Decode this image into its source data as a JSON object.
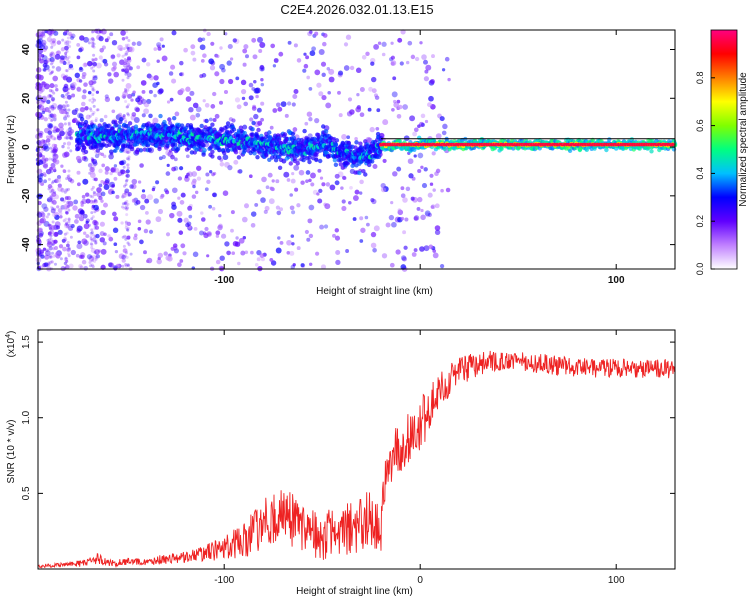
{
  "figure_title": "C2E4.2026.032.01.13.E15",
  "chart_data": [
    {
      "type": "heatmap",
      "name": "spectrogram",
      "xlabel": "Height of straight line (km)",
      "ylabel": "Frequency (Hz)",
      "xlim": [
        -195,
        130
      ],
      "ylim": [
        -50,
        48
      ],
      "xticks": [
        -100,
        0,
        100
      ],
      "xtick_labels": [
        "-100",
        "",
        "100"
      ],
      "yticks": [
        -40,
        -20,
        0,
        20,
        40
      ],
      "ytick_labels": [
        "-40",
        "-20",
        "0",
        "20",
        "40"
      ],
      "trend_x": [
        -175,
        -160,
        -140,
        -120,
        -100,
        -90,
        -80,
        -70,
        -60,
        -55,
        -50,
        -45,
        -40,
        -35,
        -30,
        -25,
        -20,
        -15,
        -10,
        -5,
        0,
        5,
        10,
        30,
        60,
        80,
        100,
        130
      ],
      "trend_y": [
        5,
        4,
        5,
        4,
        3,
        2,
        1,
        0,
        -1,
        0,
        1,
        0,
        -2,
        -3,
        -4,
        -2,
        0,
        0,
        1,
        0,
        1,
        2,
        1,
        1,
        1,
        1,
        1,
        1
      ],
      "stable_band_x": [
        -20,
        130
      ],
      "stable_band_y": 1,
      "colorbar": {
        "label": "Normalized spectral amplitude",
        "range": [
          0,
          1
        ],
        "ticks": [
          0.0,
          0.2,
          0.4,
          0.6,
          0.8
        ],
        "tick_labels": [
          "0.0",
          "0.2",
          "0.4",
          "0.6",
          "0.8"
        ],
        "colors": [
          "#ffffff",
          "#c080ff",
          "#6000ff",
          "#0000ff",
          "#00c0ff",
          "#00ff80",
          "#80ff00",
          "#ffff00",
          "#ff8000",
          "#ff0000",
          "#ff0080"
        ]
      }
    },
    {
      "type": "line",
      "name": "snr",
      "xlabel": "Height of straight line (km)",
      "ylabel": "SNR (10 * v/v)",
      "y_multiplier": "(x10",
      "y_multiplier_exp": "4",
      "y_multiplier_close": ")",
      "xlim": [
        -195,
        130
      ],
      "ylim": [
        0,
        1.58
      ],
      "xticks": [
        -100,
        0,
        100
      ],
      "xtick_labels": [
        "-100",
        "0",
        "100"
      ],
      "yticks": [
        0.5,
        1.0,
        1.5
      ],
      "ytick_labels": [
        "0.5",
        "1.0",
        "1.5"
      ],
      "line_color": "#ee2222",
      "envelope_x": [
        -195,
        -180,
        -170,
        -165,
        -160,
        -140,
        -120,
        -110,
        -100,
        -90,
        -80,
        -70,
        -60,
        -50,
        -40,
        -30,
        -25,
        -20,
        -18,
        -15,
        -10,
        -5,
        0,
        5,
        10,
        20,
        30,
        40,
        60,
        80,
        100,
        130
      ],
      "envelope_mean": [
        0.02,
        0.03,
        0.04,
        0.07,
        0.04,
        0.05,
        0.08,
        0.1,
        0.14,
        0.2,
        0.3,
        0.35,
        0.3,
        0.22,
        0.25,
        0.3,
        0.33,
        0.28,
        0.6,
        0.72,
        0.82,
        0.85,
        0.95,
        1.05,
        1.2,
        1.3,
        1.36,
        1.38,
        1.36,
        1.33,
        1.33,
        1.32
      ],
      "envelope_noise": [
        0.01,
        0.01,
        0.02,
        0.03,
        0.02,
        0.02,
        0.03,
        0.04,
        0.07,
        0.1,
        0.13,
        0.14,
        0.14,
        0.13,
        0.14,
        0.15,
        0.15,
        0.13,
        0.12,
        0.13,
        0.14,
        0.14,
        0.14,
        0.12,
        0.1,
        0.08,
        0.06,
        0.05,
        0.05,
        0.05,
        0.05,
        0.05
      ]
    }
  ]
}
